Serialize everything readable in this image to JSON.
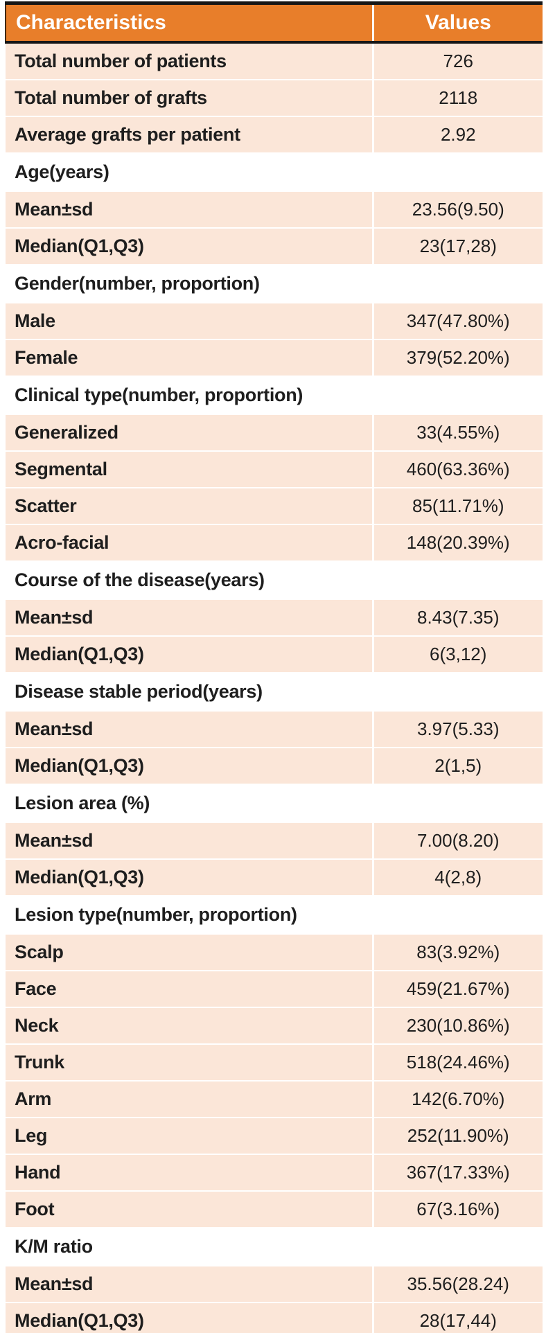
{
  "table": {
    "title_semantics": "patient-characteristics-table",
    "colors": {
      "header_bg": "#E87E2A",
      "header_text": "#FFFFFF",
      "data_row_bg": "#FBE6D8",
      "section_row_bg": "#FFFFFF",
      "rule_black": "#161616",
      "body_text": "#1E1E1E",
      "divider_white": "#FFFFFF"
    },
    "header": {
      "characteristics": "Characteristics",
      "values": "Values"
    },
    "rows": [
      {
        "type": "data",
        "label": "Total number of patients",
        "value": "726"
      },
      {
        "type": "data",
        "label": "Total number of grafts",
        "value": "2118"
      },
      {
        "type": "data",
        "label": "Average grafts per patient",
        "value": "2.92"
      },
      {
        "type": "section",
        "label": "Age(years)"
      },
      {
        "type": "data",
        "label": "Mean±sd",
        "value": "23.56(9.50)"
      },
      {
        "type": "data",
        "label": "Median(Q1,Q3)",
        "value": "23(17,28)"
      },
      {
        "type": "section",
        "label": "Gender(number, proportion)"
      },
      {
        "type": "data",
        "label": "Male",
        "value": "347(47.80%)"
      },
      {
        "type": "data",
        "label": "Female",
        "value": "379(52.20%)"
      },
      {
        "type": "section",
        "label": "Clinical type(number, proportion)"
      },
      {
        "type": "data",
        "label": "Generalized",
        "value": "33(4.55%)"
      },
      {
        "type": "data",
        "label": "Segmental",
        "value": "460(63.36%)"
      },
      {
        "type": "data",
        "label": "Scatter",
        "value": "85(11.71%)"
      },
      {
        "type": "data",
        "label": "Acro-facial",
        "value": "148(20.39%)"
      },
      {
        "type": "section",
        "label": "Course of the disease(years)"
      },
      {
        "type": "data",
        "label": "Mean±sd",
        "value": "8.43(7.35)"
      },
      {
        "type": "data",
        "label": "Median(Q1,Q3)",
        "value": "6(3,12)"
      },
      {
        "type": "section",
        "label": "Disease stable period(years)"
      },
      {
        "type": "data",
        "label": "Mean±sd",
        "value": "3.97(5.33)"
      },
      {
        "type": "data",
        "label": "Median(Q1,Q3)",
        "value": "2(1,5)"
      },
      {
        "type": "section",
        "label": "Lesion area (%)"
      },
      {
        "type": "data",
        "label": "Mean±sd",
        "value": "7.00(8.20)"
      },
      {
        "type": "data",
        "label": "Median(Q1,Q3)",
        "value": "4(2,8)"
      },
      {
        "type": "section",
        "label": "Lesion type(number, proportion)"
      },
      {
        "type": "data",
        "label": "Scalp",
        "value": "83(3.92%)"
      },
      {
        "type": "data",
        "label": "Face",
        "value": "459(21.67%)"
      },
      {
        "type": "data",
        "label": "Neck",
        "value": "230(10.86%)"
      },
      {
        "type": "data",
        "label": "Trunk",
        "value": "518(24.46%)"
      },
      {
        "type": "data",
        "label": "Arm",
        "value": "142(6.70%)"
      },
      {
        "type": "data",
        "label": "Leg",
        "value": "252(11.90%)"
      },
      {
        "type": "data",
        "label": "Hand",
        "value": "367(17.33%)"
      },
      {
        "type": "data",
        "label": "Foot",
        "value": "67(3.16%)"
      },
      {
        "type": "section",
        "label": "K/M ratio"
      },
      {
        "type": "data",
        "label": "Mean±sd",
        "value": "35.56(28.24)"
      },
      {
        "type": "data",
        "label": "Median(Q1,Q3)",
        "value": "28(17,44)"
      }
    ]
  }
}
